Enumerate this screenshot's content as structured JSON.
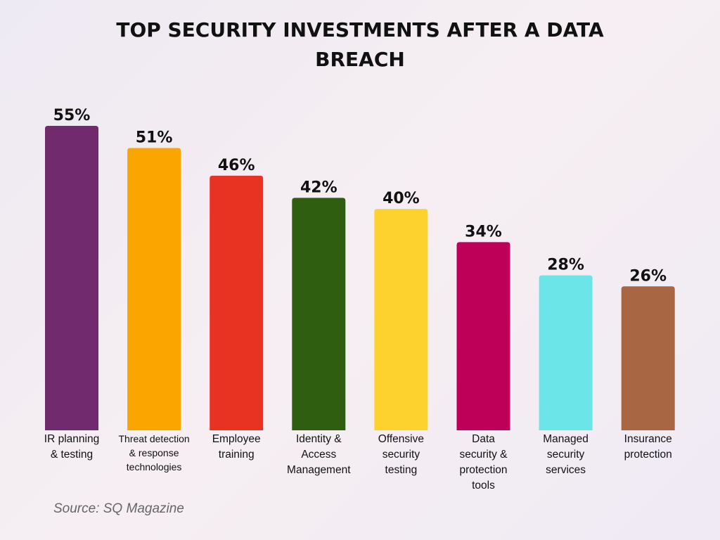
{
  "chart_data": {
    "type": "bar",
    "title_lines": [
      "TOP SECURITY INVESTMENTS AFTER A DATA",
      "BREACH"
    ],
    "categories": [
      [
        "IR planning",
        "& testing"
      ],
      [
        "Threat detection",
        "& response",
        "technologies"
      ],
      [
        "Employee",
        "training"
      ],
      [
        "Identity &",
        "Access",
        "Management"
      ],
      [
        "Offensive",
        "security",
        "testing"
      ],
      [
        "Data",
        "security &",
        "protection",
        "tools"
      ],
      [
        "Managed",
        "security",
        "services"
      ],
      [
        "Insurance",
        "protection"
      ]
    ],
    "values": [
      55,
      51,
      46,
      42,
      40,
      34,
      28,
      26
    ],
    "data_labels": [
      "55%",
      "51%",
      "46%",
      "42%",
      "40%",
      "34%",
      "28%",
      "26%"
    ],
    "colors": [
      "#722a6e",
      "#fba500",
      "#e83322",
      "#2f5e10",
      "#fed22e",
      "#bf0059",
      "#6ce5e8",
      "#a86642"
    ],
    "unit": "%",
    "ylim": [
      0,
      55
    ],
    "grid": false,
    "legend": "none"
  },
  "source": "Source: SQ Magazine"
}
